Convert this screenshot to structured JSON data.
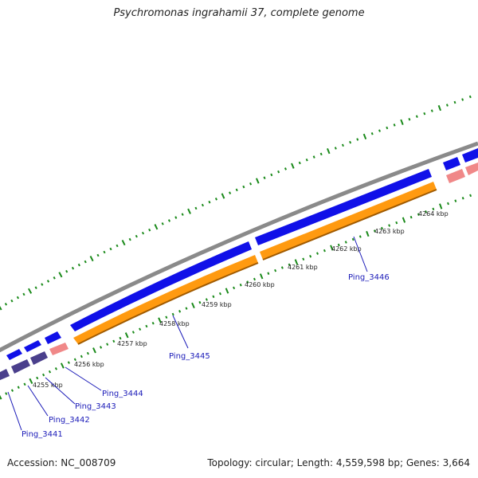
{
  "title": "Psychromonas ingrahamii 37, complete genome",
  "accession": "Accession: NC_008709",
  "topology": "Topology: circular; Length: 4,559,598 bp; Genes: 3,664",
  "colors": {
    "backbone": "#8a8a8a",
    "forward_cds": "#1010e8",
    "reverse_cds": "#4a3f8c",
    "orange_feature": "#ff9a10",
    "pink_feature": "#f08888",
    "tick": "#1a8a1a",
    "gene_label": "#1a1ab8",
    "kbp_label": "#222222"
  },
  "scale_labels": [
    "4255 kbp",
    "4256 kbp",
    "4257 kbp",
    "4258 kbp",
    "4259 kbp",
    "4260 kbp",
    "4261 kbp",
    "4262 kbp",
    "4263 kbp",
    "4264 kbp"
  ],
  "gene_labels": [
    "Ping_3441",
    "Ping_3442",
    "Ping_3443",
    "Ping_3444",
    "Ping_3445",
    "Ping_3446"
  ]
}
